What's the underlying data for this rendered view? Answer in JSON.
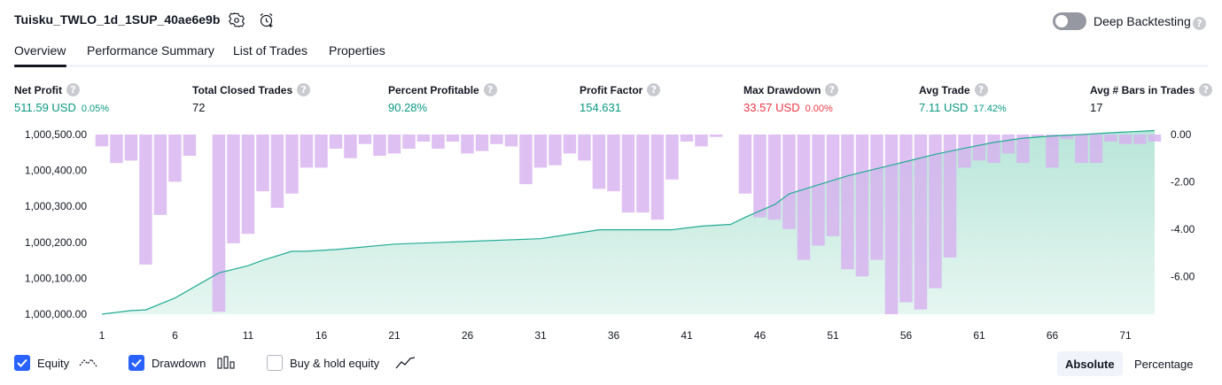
{
  "header": {
    "strategy_name": "Tuisku_TWLO_1d_1SUP_40ae6e9b",
    "settings_icon": "gear-icon",
    "alert_icon": "alarm-clock-plus-icon",
    "deep_backtesting_label": "Deep Backtesting",
    "deep_backtesting_on": false,
    "help_glyph": "?"
  },
  "tabs": [
    {
      "label": "Overview",
      "active": true
    },
    {
      "label": "Performance Summary",
      "active": false
    },
    {
      "label": "List of Trades",
      "active": false
    },
    {
      "label": "Properties",
      "active": false
    }
  ],
  "metrics": [
    {
      "label": "Net Profit",
      "value": "511.59 USD",
      "sub": "0.05%",
      "tone": "pos"
    },
    {
      "label": "Total Closed Trades",
      "value": "72",
      "sub": "",
      "tone": "neutral"
    },
    {
      "label": "Percent Profitable",
      "value": "90.28%",
      "sub": "",
      "tone": "pos"
    },
    {
      "label": "Profit Factor",
      "value": "154.631",
      "sub": "",
      "tone": "pos"
    },
    {
      "label": "Max Drawdown",
      "value": "33.57 USD",
      "sub": "0.00%",
      "tone": "neg"
    },
    {
      "label": "Avg Trade",
      "value": "7.11 USD",
      "sub": "17.42%",
      "tone": "pos"
    },
    {
      "label": "Avg # Bars in Trades",
      "value": "17",
      "sub": "",
      "tone": "neutral"
    }
  ],
  "chart_data": {
    "type": "area",
    "x_ticks": [
      "1",
      "6",
      "11",
      "16",
      "21",
      "26",
      "31",
      "36",
      "41",
      "46",
      "51",
      "56",
      "61",
      "66",
      "71"
    ],
    "y_left_ticks": [
      "1,000,500.00",
      "1,000,400.00",
      "1,000,300.00",
      "1,000,200.00",
      "1,000,100.00",
      "1,000,000.00"
    ],
    "y_right_ticks": [
      "0.00",
      "-2.00",
      "-4.00",
      "-6.00"
    ],
    "y_left_range": [
      1000000,
      1000500
    ],
    "y_right_range": [
      -7.6,
      0
    ],
    "x_range": [
      1,
      73
    ],
    "series": [
      {
        "name": "Equity",
        "type": "area",
        "color": "#22ab94",
        "fill": "#c8ebe2",
        "x": [
          1,
          3,
          4,
          6,
          9,
          11,
          12,
          14,
          15,
          17,
          21,
          31,
          35,
          39,
          40,
          42,
          44,
          45,
          47,
          48,
          50,
          52,
          54,
          56,
          58,
          60,
          62,
          64,
          66,
          68,
          70,
          73
        ],
        "values": [
          1000000,
          1000010,
          1000012,
          1000045,
          1000115,
          1000135,
          1000150,
          1000175,
          1000175,
          1000180,
          1000195,
          1000210,
          1000235,
          1000235,
          1000235,
          1000245,
          1000250,
          1000270,
          1000305,
          1000335,
          1000360,
          1000385,
          1000405,
          1000425,
          1000445,
          1000462,
          1000478,
          1000490,
          1000496,
          1000500,
          1000505,
          1000511
        ]
      },
      {
        "name": "Drawdown",
        "type": "bar",
        "color": "#ce93d8",
        "values": [
          -0.5,
          -1.2,
          -1.1,
          -5.5,
          -3.4,
          -2.0,
          -0.9,
          0,
          -7.5,
          -4.6,
          -4.2,
          -2.4,
          -3.1,
          -2.5,
          -1.4,
          -1.4,
          -0.6,
          -1.0,
          -0.4,
          -0.9,
          -0.8,
          -0.6,
          -0.3,
          -0.6,
          -0.3,
          -0.8,
          -0.7,
          -0.4,
          -0.5,
          -2.1,
          -1.4,
          -1.3,
          -0.8,
          -1.1,
          -2.3,
          -2.4,
          -3.3,
          -3.3,
          -3.6,
          -1.9,
          -0.3,
          -0.5,
          -0.1,
          0,
          -2.5,
          -3.5,
          -3.6,
          -4.0,
          -5.3,
          -4.7,
          -4.3,
          -5.7,
          -6.0,
          -5.3,
          -7.6,
          -7.1,
          -7.4,
          -6.5,
          -5.2,
          -1.4,
          -1.1,
          -1.2,
          -0.8,
          -1.2,
          -0.1,
          -1.4,
          -0.2,
          -1.2,
          -1.2,
          -0.3,
          -0.4,
          -0.4,
          -0.3
        ]
      }
    ]
  },
  "legend": [
    {
      "label": "Equity",
      "checked": true,
      "icon": "equity-line-icon"
    },
    {
      "label": "Drawdown",
      "checked": true,
      "icon": "drawdown-bars-icon"
    },
    {
      "label": "Buy & hold equity",
      "checked": false,
      "icon": "buy-hold-line-icon"
    }
  ],
  "view_toggle": [
    {
      "label": "Absolute",
      "active": true
    },
    {
      "label": "Percentage",
      "active": false
    }
  ]
}
